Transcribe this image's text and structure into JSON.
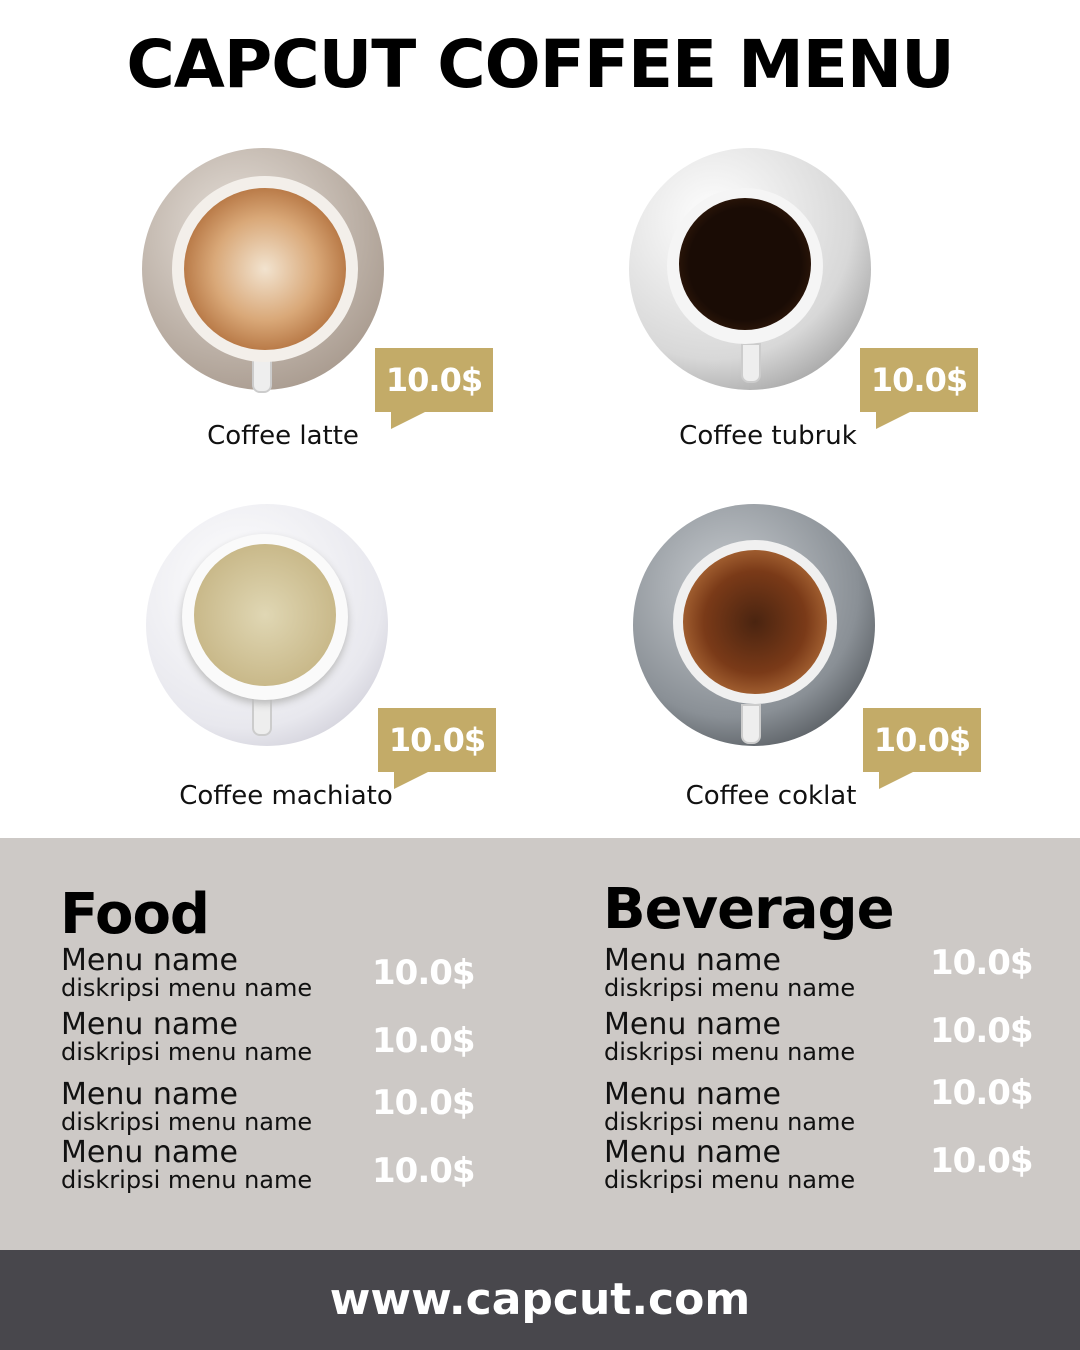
{
  "title": "CAPCUT COFFEE MENU",
  "products": [
    {
      "name": "Coffee latte",
      "price": "10.0$"
    },
    {
      "name": "Coffee tubruk",
      "price": "10.0$"
    },
    {
      "name": "Coffee machiato",
      "price": "10.0$"
    },
    {
      "name": "Coffee coklat",
      "price": "10.0$"
    }
  ],
  "food": {
    "heading": "Food",
    "items": [
      {
        "name": "Menu name",
        "desc": "diskripsi menu name",
        "price": "10.0$"
      },
      {
        "name": "Menu name",
        "desc": "diskripsi menu name",
        "price": "10.0$"
      },
      {
        "name": "Menu name",
        "desc": "diskripsi menu name",
        "price": "10.0$"
      },
      {
        "name": "Menu name",
        "desc": "diskripsi menu name",
        "price": "10.0$"
      }
    ]
  },
  "beverage": {
    "heading": "Beverage",
    "items": [
      {
        "name": "Menu name",
        "desc": "diskripsi menu name",
        "price": "10.0$"
      },
      {
        "name": "Menu name",
        "desc": "diskripsi menu name",
        "price": "10.0$"
      },
      {
        "name": "Menu name",
        "desc": "diskripsi menu name",
        "price": "10.0$"
      },
      {
        "name": "Menu name",
        "desc": "diskripsi menu name",
        "price": "10.0$"
      }
    ]
  },
  "footer": "www.capcut.com",
  "colors": {
    "accent": "#c3ab68",
    "panel": "#cdc9c6",
    "footer": "#48474c"
  }
}
